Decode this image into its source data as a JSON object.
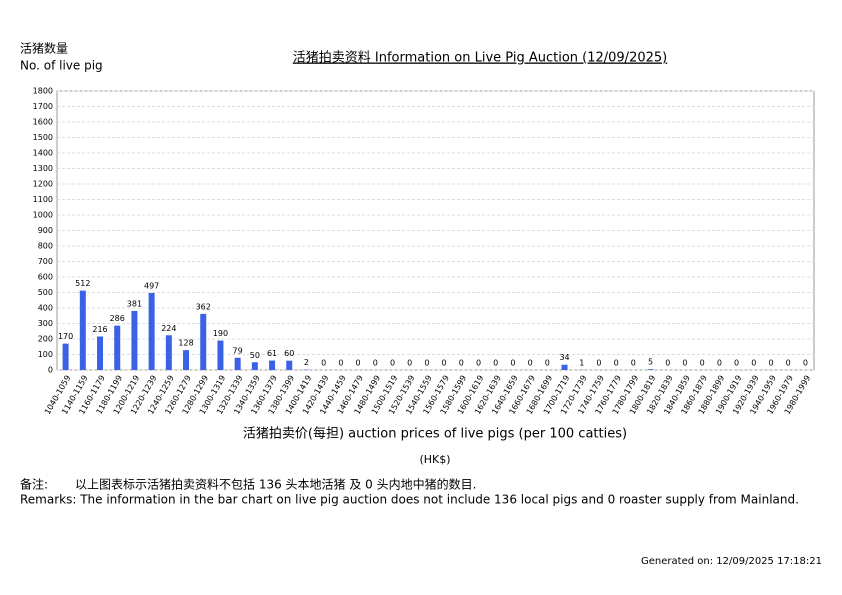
{
  "chart_data": {
    "type": "bar",
    "title": "活猪拍卖资料 Information on Live Pig Auction (12/09/2025)",
    "y_label": [
      "活猪数量",
      "No. of live pig"
    ],
    "x_label": "活猪拍卖价(每担) auction prices of live pigs (per 100 catties)",
    "x_unit": "(HK$)",
    "categories": [
      "1040-1059",
      "1140-1159",
      "1160-1179",
      "1180-1199",
      "1200-1219",
      "1220-1239",
      "1240-1259",
      "1260-1279",
      "1280-1299",
      "1300-1319",
      "1320-1339",
      "1340-1359",
      "1360-1379",
      "1380-1399",
      "1400-1419",
      "1420-1439",
      "1440-1459",
      "1460-1479",
      "1480-1499",
      "1500-1519",
      "1520-1539",
      "1540-1559",
      "1560-1579",
      "1580-1599",
      "1600-1619",
      "1620-1639",
      "1640-1659",
      "1660-1679",
      "1680-1699",
      "1700-1719",
      "1720-1739",
      "1740-1759",
      "1760-1779",
      "1780-1799",
      "1800-1819",
      "1820-1839",
      "1840-1859",
      "1860-1879",
      "1880-1899",
      "1900-1919",
      "1920-1939",
      "1940-1959",
      "1960-1979",
      "1980-1999"
    ],
    "values": [
      170,
      512,
      216,
      286,
      381,
      497,
      224,
      128,
      362,
      190,
      79,
      50,
      61,
      60,
      2,
      0,
      0,
      0,
      0,
      0,
      0,
      0,
      0,
      0,
      0,
      0,
      0,
      0,
      0,
      34,
      1,
      0,
      0,
      0,
      5,
      0,
      0,
      0,
      0,
      0,
      0,
      0,
      0,
      0
    ],
    "color": "#3b62e6",
    "ylim": [
      0,
      1800
    ],
    "yticks": [
      0,
      100,
      200,
      300,
      400,
      500,
      600,
      700,
      800,
      900,
      1000,
      1100,
      1200,
      1300,
      1400,
      1500,
      1600,
      1700,
      1800
    ],
    "grid": true
  },
  "remarks": {
    "label_zh": "备注:",
    "text_zh": "以上图表标示活猪拍卖资料不包括 136 头本地活猪 及 0 头内地中猪的数目.",
    "text_en": "Remarks: The information in the bar chart on live pig auction does not include 136 local pigs and 0 roaster supply from Mainland."
  },
  "generated": "Generated on: 12/09/2025 17:18:21"
}
